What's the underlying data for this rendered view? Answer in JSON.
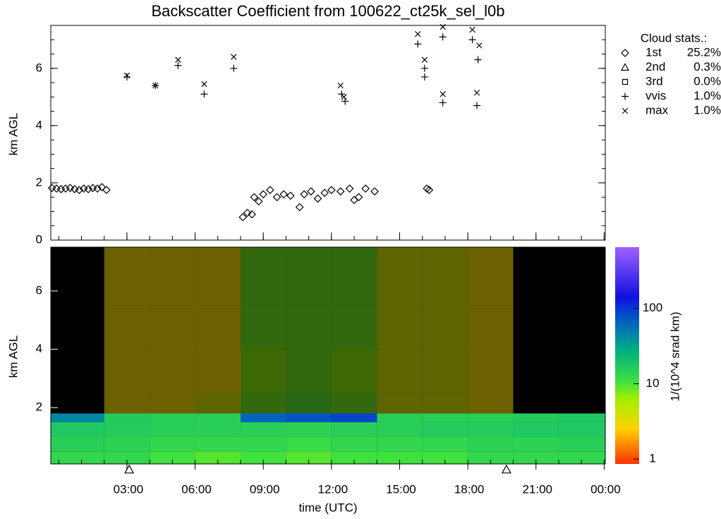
{
  "chart_data": [
    {
      "type": "scatter",
      "title": "Backscatter Coefficient from 100622_ct25k_sel_l0b",
      "y_label": "km AGL",
      "xlim": [
        -0.35,
        24.05
      ],
      "xticks": [
        3,
        6,
        9,
        12,
        15,
        18,
        21,
        24
      ],
      "ylim": [
        0,
        7.5
      ],
      "yticks": [
        0,
        2,
        4,
        6
      ],
      "legend_title": "Cloud stats.:",
      "series": [
        {
          "name": "1st",
          "symbol": "diamond",
          "color": "#000000",
          "stat": {
            "value": 25.2,
            "label": "25.2%"
          },
          "x": [
            -0.3,
            -0.1,
            0.1,
            0.3,
            0.5,
            0.7,
            0.9,
            1.1,
            1.3,
            1.5,
            1.7,
            1.9,
            2.1,
            8.1,
            8.3,
            8.5,
            8.6,
            8.8,
            9.0,
            9.3,
            9.6,
            9.9,
            10.2,
            10.6,
            10.8,
            11.1,
            11.4,
            11.7,
            12.0,
            12.4,
            12.8,
            13.0,
            13.2,
            13.5,
            13.9,
            16.2,
            16.3
          ],
          "y": [
            1.82,
            1.8,
            1.78,
            1.8,
            1.82,
            1.78,
            1.75,
            1.8,
            1.78,
            1.82,
            1.8,
            1.85,
            1.75,
            0.8,
            0.95,
            0.9,
            1.5,
            1.35,
            1.6,
            1.75,
            1.5,
            1.6,
            1.55,
            1.15,
            1.6,
            1.7,
            1.45,
            1.65,
            1.75,
            1.7,
            1.8,
            1.4,
            1.5,
            1.8,
            1.7,
            1.8,
            1.75
          ]
        },
        {
          "name": "2nd",
          "symbol": "triangle",
          "color": "#000000",
          "stat": {
            "value": 0.3,
            "label": "0.3%"
          },
          "x": [],
          "y": []
        },
        {
          "name": "3rd",
          "symbol": "square",
          "color": "#000000",
          "stat": {
            "value": 0.0,
            "label": "0.0%"
          },
          "x": [],
          "y": []
        },
        {
          "name": "vvis",
          "symbol": "plus",
          "color": "#000000",
          "stat": {
            "value": 1.0,
            "label": "1.0%"
          },
          "x": [
            3.0,
            4.25,
            5.25,
            6.4,
            7.7,
            12.45,
            12.6,
            15.8,
            16.1,
            16.1,
            16.9,
            16.9,
            18.2,
            18.4,
            18.45
          ],
          "y": [
            5.7,
            5.4,
            6.1,
            5.1,
            6.0,
            5.1,
            4.85,
            6.85,
            5.7,
            6.0,
            7.1,
            4.8,
            7.0,
            4.7,
            6.3
          ]
        },
        {
          "name": "max",
          "symbol": "cross",
          "color": "#000000",
          "stat": {
            "value": 1.0,
            "label": "1.0%"
          },
          "x": [
            3.0,
            4.25,
            5.25,
            6.4,
            7.7,
            12.4,
            12.55,
            15.8,
            16.1,
            16.9,
            16.9,
            18.2,
            18.4,
            18.5
          ],
          "y": [
            5.75,
            5.4,
            6.3,
            5.45,
            6.4,
            5.4,
            5.0,
            7.2,
            6.3,
            7.45,
            5.1,
            7.35,
            5.15,
            6.8
          ]
        }
      ]
    },
    {
      "type": "heatmap",
      "y_label": "km AGL",
      "x_label": "time (UTC)",
      "xlim": [
        -0.35,
        24.05
      ],
      "xticks": [
        {
          "value": 3,
          "label": "03:00"
        },
        {
          "value": 6,
          "label": "06:00"
        },
        {
          "value": 9,
          "label": "09:00"
        },
        {
          "value": 12,
          "label": "12:00"
        },
        {
          "value": 15,
          "label": "15:00"
        },
        {
          "value": 18,
          "label": "18:00"
        },
        {
          "value": 21,
          "label": "21:00"
        },
        {
          "value": 24,
          "label": "00:00"
        }
      ],
      "ylim": [
        0.07,
        7.5
      ],
      "yticks": [
        2,
        4,
        6
      ],
      "marker_times": [
        3.1,
        19.7
      ],
      "time_bins": [
        -0.35,
        2,
        4,
        6,
        8,
        10,
        12,
        14,
        16,
        18,
        20,
        22,
        24.05
      ],
      "height_bins": [
        0.07,
        0.5,
        1,
        1.5,
        1.8,
        2.5,
        4,
        5.5,
        7.5
      ],
      "values": [
        [
          12,
          12,
          10,
          9,
          10,
          9,
          10,
          10,
          10,
          12,
          12,
          12
        ],
        [
          14,
          13,
          12,
          12,
          12,
          11,
          12,
          12,
          12,
          13,
          13,
          14
        ],
        [
          16,
          15,
          14,
          14,
          14,
          13,
          14,
          14,
          15,
          15,
          16,
          16
        ],
        [
          40,
          15,
          14,
          14,
          60,
          70,
          80,
          14,
          14,
          14,
          15,
          16
        ],
        [
          null,
          3,
          3,
          4,
          8,
          9,
          8,
          4,
          4,
          3,
          null,
          null
        ],
        [
          null,
          3,
          3,
          3,
          7,
          8,
          7,
          4,
          4,
          3,
          null,
          null
        ],
        [
          null,
          3,
          3,
          3,
          8,
          8,
          8,
          4,
          4,
          3,
          null,
          null
        ],
        [
          null,
          3,
          3,
          3,
          8,
          8,
          8,
          4,
          4,
          3,
          null,
          null
        ]
      ],
      "colorbar": {
        "label": "1/(10^4 srad km)",
        "log": true,
        "lim": [
          0.86,
          650
        ],
        "ticks": [
          1,
          10,
          100
        ]
      }
    }
  ]
}
